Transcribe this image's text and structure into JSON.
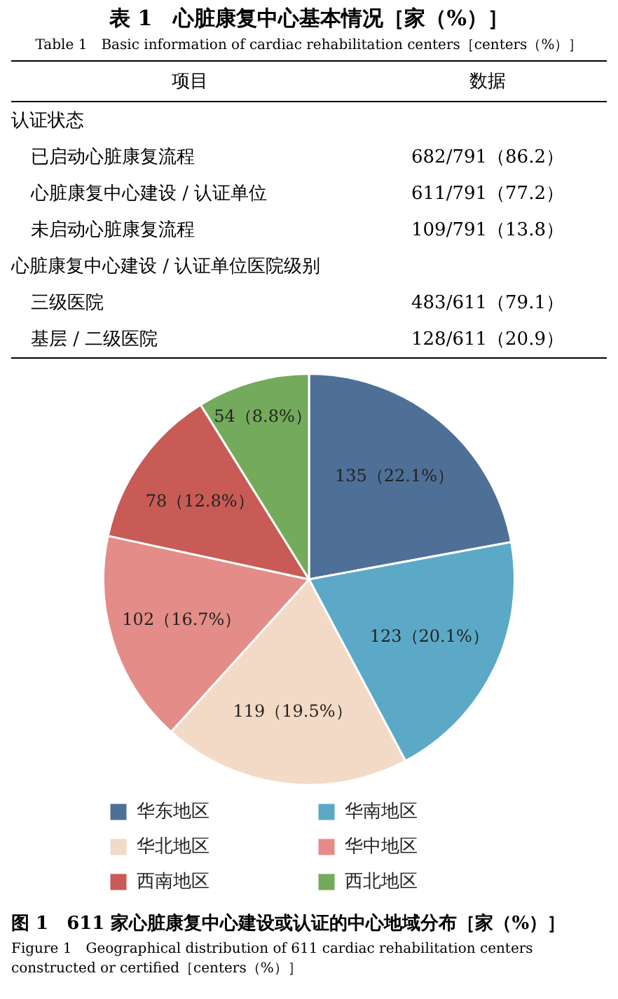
{
  "chart_data": [
    {
      "type": "other",
      "title": "表 1　心脏康复中心基本情况［家（%）］",
      "subtitle": "Table 1　Basic information of cardiac rehabilitation centers［centers（%）］",
      "categories": [
        "项目",
        "数据"
      ],
      "y_categories": [
        "认证状态",
        "已启动心脏康复流程",
        "心脏康复中心建设 / 认证单位",
        "未启动心脏康复流程",
        "心脏康复中心建设 / 认证单位医院级别",
        "三级医院",
        "基层 / 二级医院"
      ],
      "cell_labels": [
        [
          null
        ],
        [
          "682/791（86.2）"
        ],
        [
          "611/791（77.2）"
        ],
        [
          "109/791（13.8）"
        ],
        [
          null
        ],
        [
          "483/611（79.1）"
        ],
        [
          "128/611（20.9）"
        ]
      ]
    },
    {
      "type": "pie",
      "title": "图 1　611 家心脏康复中心建设或认证的中心地域分布［家（%）］",
      "subtitle": "Figure 1　Geographical distribution of 611 cardiac rehabilitation centers constructed or certified［centers（%）］",
      "categories": [
        "华东地区",
        "华南地区",
        "华北地区",
        "华中地区",
        "西南地区",
        "西北地区"
      ],
      "values": [
        135,
        123,
        119,
        102,
        78,
        54
      ],
      "colors": [
        "#4e7097",
        "#5ba9c7",
        "#f3dac6",
        "#e48c87",
        "#c85b56",
        "#74aa5b"
      ],
      "value_labels": [
        "135（22.1%）",
        "123（20.1%）",
        "119（19.5%）",
        "102（16.7%）",
        "78（12.8%）",
        "54（8.8%）"
      ],
      "legend": "bottom"
    }
  ]
}
